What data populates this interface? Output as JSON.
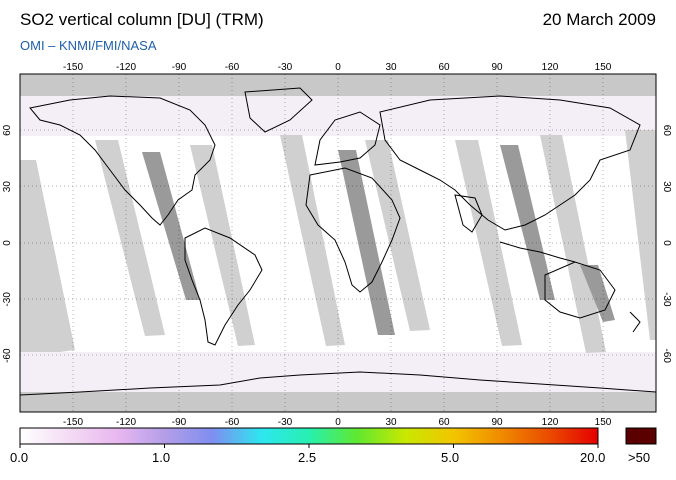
{
  "header": {
    "title": "SO2 vertical column [DU] (TRM)",
    "date": "20 March 2009",
    "credit": "OMI  –  KNMI/FMI/NASA"
  },
  "map": {
    "lon_ticks": [
      "-150",
      "-120",
      "-90",
      "-60",
      "-30",
      "0",
      "30",
      "60",
      "90",
      "120",
      "150"
    ],
    "lat_ticks": [
      "60",
      "30",
      "0",
      "-30",
      "-60"
    ],
    "colors": {
      "ocean": "#ffffff",
      "land_noise": "#f2e8f5",
      "swath_light": "#d0d0d0",
      "swath_dark": "#9a9a9a",
      "polar_band": "#c8c8c8",
      "coast": "#000000"
    }
  },
  "colorbar": {
    "labels": [
      "0.0",
      "1.0",
      "2.5",
      "5.0",
      "20.0"
    ],
    "overflow_label": ">50",
    "overflow_color": "#5a0000",
    "gradient": [
      "#ffffff",
      "#f4dcf4",
      "#e9b8f0",
      "#b49ee8",
      "#7f8ef0",
      "#2ee6f0",
      "#27f0b0",
      "#5fe830",
      "#c9e800",
      "#f2c500",
      "#f08a00",
      "#ea4a00",
      "#e60000"
    ]
  }
}
